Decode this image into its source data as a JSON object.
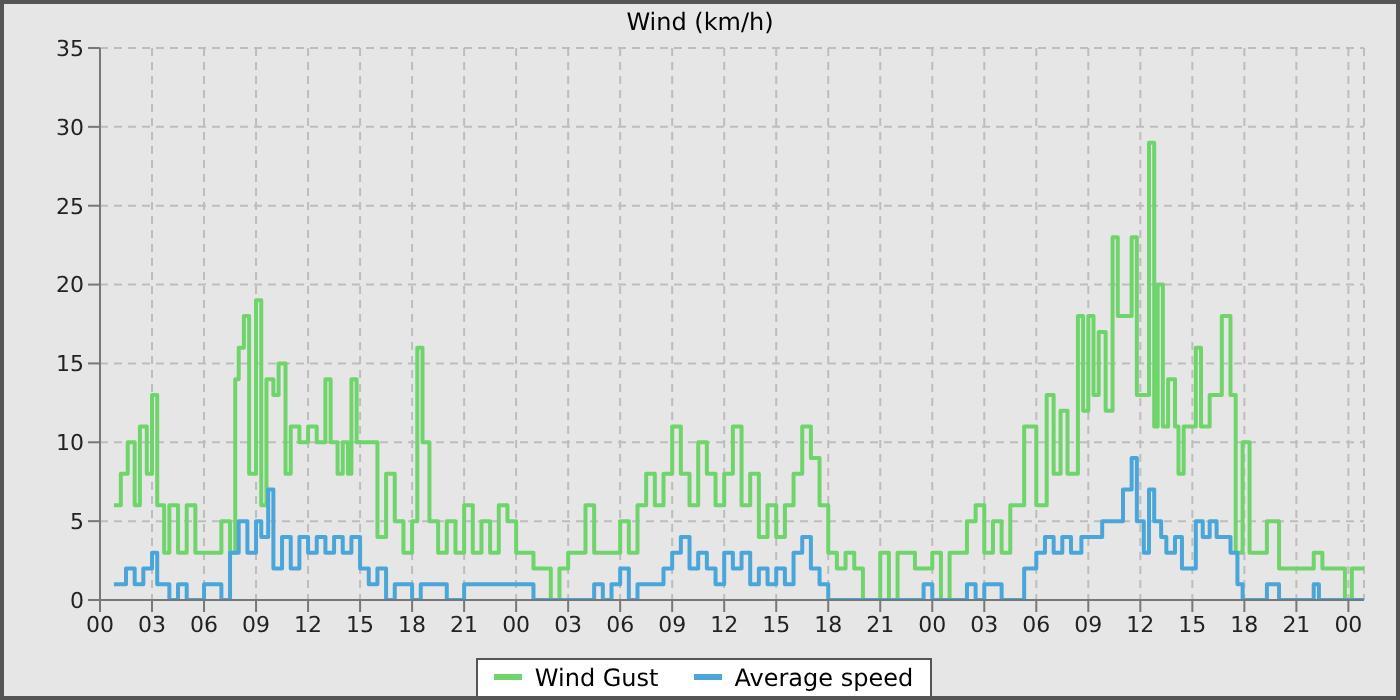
{
  "chart_data": {
    "type": "step",
    "title": "Wind (km/h)",
    "xlim": [
      0,
      72.9
    ],
    "xticks": [
      {
        "value": 0,
        "label": "00"
      },
      {
        "value": 3,
        "label": "03"
      },
      {
        "value": 6,
        "label": "06"
      },
      {
        "value": 9,
        "label": "09"
      },
      {
        "value": 12,
        "label": "12"
      },
      {
        "value": 15,
        "label": "15"
      },
      {
        "value": 18,
        "label": "18"
      },
      {
        "value": 21,
        "label": "21"
      },
      {
        "value": 24,
        "label": "00"
      },
      {
        "value": 27,
        "label": "03"
      },
      {
        "value": 30,
        "label": "06"
      },
      {
        "value": 33,
        "label": "09"
      },
      {
        "value": 36,
        "label": "12"
      },
      {
        "value": 39,
        "label": "15"
      },
      {
        "value": 42,
        "label": "18"
      },
      {
        "value": 45,
        "label": "21"
      },
      {
        "value": 48,
        "label": "00"
      },
      {
        "value": 51,
        "label": "03"
      },
      {
        "value": 54,
        "label": "06"
      },
      {
        "value": 57,
        "label": "09"
      },
      {
        "value": 60,
        "label": "12"
      },
      {
        "value": 63,
        "label": "15"
      },
      {
        "value": 66,
        "label": "18"
      },
      {
        "value": 69,
        "label": "21"
      },
      {
        "value": 72,
        "label": "00"
      }
    ],
    "ylim": [
      0,
      35
    ],
    "yticks": [
      0,
      5,
      10,
      15,
      20,
      25,
      30,
      35
    ],
    "grid": true,
    "legend": "bottom",
    "series": [
      {
        "name": "Wind Gust",
        "color": "#70d46c",
        "x": [
          0.8,
          1.2,
          1.6,
          2.0,
          2.3,
          2.7,
          3.0,
          3.3,
          3.7,
          4.0,
          4.5,
          5.0,
          5.5,
          6.0,
          7.0,
          7.5,
          7.8,
          8.0,
          8.3,
          8.6,
          9.0,
          9.3,
          9.6,
          10.0,
          10.3,
          10.7,
          11.0,
          11.5,
          12.0,
          12.5,
          13.0,
          13.3,
          13.7,
          14.0,
          14.3,
          14.5,
          14.8,
          15.3,
          16.0,
          16.5,
          17.0,
          17.5,
          18.0,
          18.3,
          18.6,
          19.0,
          19.5,
          20.0,
          20.5,
          21.0,
          21.5,
          22.0,
          22.5,
          23.0,
          23.5,
          24.0,
          25.0,
          26.0,
          26.5,
          27.0,
          28.0,
          28.5,
          29.0,
          30.0,
          30.5,
          31.0,
          31.5,
          32.0,
          32.5,
          33.0,
          33.5,
          34.0,
          34.5,
          35.0,
          35.5,
          36.0,
          36.5,
          37.0,
          37.5,
          38.0,
          38.5,
          39.0,
          39.5,
          40.0,
          40.5,
          41.0,
          41.5,
          42.0,
          42.5,
          43.0,
          43.5,
          44.0,
          45.0,
          45.5,
          46.0,
          47.0,
          48.0,
          48.5,
          49.0,
          50.0,
          50.5,
          51.0,
          51.5,
          52.0,
          52.5,
          53.3,
          54.0,
          54.6,
          55.0,
          55.4,
          55.8,
          56.4,
          56.7,
          57.0,
          57.3,
          57.6,
          58.0,
          58.4,
          58.7,
          59.5,
          59.8,
          60.5,
          60.8,
          61.0,
          61.3,
          61.6,
          62.0,
          62.2,
          62.5,
          63.2,
          63.5,
          64.0,
          64.7,
          65.2,
          65.5,
          65.9,
          66.3,
          67.3,
          68.0,
          70.0,
          70.5,
          71.8,
          72.2,
          72.9
        ],
        "values": [
          6,
          8,
          10,
          6,
          11,
          8,
          13,
          6,
          3,
          6,
          3,
          6,
          3,
          3,
          5,
          3,
          14,
          16,
          18,
          8,
          19,
          6,
          14,
          13,
          15,
          8,
          11,
          10,
          11,
          10,
          14,
          10,
          8,
          10,
          8,
          14,
          10,
          10,
          4,
          8,
          5,
          3,
          5,
          16,
          10,
          5,
          3,
          5,
          3,
          6,
          3,
          5,
          3,
          6,
          5,
          3,
          2,
          0,
          2,
          3,
          6,
          3,
          3,
          5,
          3,
          6,
          8,
          6,
          8,
          11,
          8,
          6,
          10,
          8,
          6,
          8,
          11,
          6,
          8,
          4,
          6,
          4,
          6,
          8,
          11,
          9,
          6,
          3,
          2,
          3,
          2,
          0,
          3,
          0,
          3,
          2,
          3,
          0,
          3,
          5,
          6,
          3,
          5,
          3,
          6,
          11,
          6,
          13,
          8,
          12,
          8,
          18,
          12,
          18,
          13,
          17,
          12,
          23,
          18,
          23,
          13,
          29,
          11,
          20,
          11,
          14,
          11,
          8,
          11,
          16,
          11,
          13,
          18,
          13,
          3,
          10,
          3,
          5,
          2,
          3,
          2,
          0,
          2,
          2
        ]
      },
      {
        "name": "Average speed",
        "color": "#4aa6d8",
        "x": [
          0.8,
          1.5,
          2.0,
          2.5,
          3.0,
          3.3,
          4.0,
          4.5,
          5.0,
          6.0,
          7.0,
          7.5,
          8.0,
          8.5,
          9.0,
          9.3,
          9.7,
          10.0,
          10.5,
          11.0,
          11.5,
          12.0,
          12.5,
          13.0,
          13.5,
          14.0,
          14.5,
          15.0,
          15.5,
          16.0,
          16.5,
          17.0,
          18.0,
          18.5,
          19.5,
          20.0,
          21.0,
          22.0,
          23.0,
          24.0,
          25.0,
          28.0,
          28.5,
          29.0,
          29.5,
          30.0,
          30.5,
          31.0,
          32.0,
          32.5,
          33.0,
          33.5,
          34.0,
          34.5,
          35.0,
          35.5,
          36.0,
          36.5,
          37.0,
          37.5,
          38.0,
          38.5,
          39.0,
          39.5,
          40.0,
          40.5,
          41.0,
          41.5,
          42.0,
          47.5,
          48.0,
          50.0,
          50.5,
          51.0,
          52.0,
          53.3,
          54.0,
          54.5,
          55.0,
          55.5,
          56.0,
          56.6,
          57.8,
          59.0,
          59.5,
          59.8,
          60.2,
          60.5,
          60.8,
          61.2,
          61.5,
          62.0,
          62.4,
          63.2,
          63.6,
          64.0,
          64.4,
          65.2,
          65.6,
          65.9,
          67.3,
          68.0,
          70.0,
          70.3,
          72.9
        ],
        "values": [
          1,
          2,
          1,
          2,
          3,
          1,
          0,
          1,
          0,
          1,
          0,
          3,
          5,
          3,
          5,
          4,
          7,
          2,
          4,
          2,
          4,
          3,
          4,
          3,
          4,
          3,
          4,
          2,
          1,
          2,
          0,
          1,
          0,
          1,
          1,
          0,
          1,
          1,
          1,
          1,
          0,
          0,
          1,
          0,
          1,
          2,
          0,
          1,
          1,
          2,
          3,
          4,
          2,
          3,
          2,
          1,
          3,
          2,
          3,
          1,
          2,
          1,
          2,
          1,
          3,
          4,
          2,
          1,
          0,
          1,
          0,
          1,
          0,
          1,
          0,
          2,
          3,
          4,
          3,
          4,
          3,
          4,
          5,
          7,
          9,
          5,
          3,
          7,
          5,
          4,
          3,
          4,
          2,
          5,
          4,
          5,
          4,
          3,
          1,
          0,
          1,
          0,
          1,
          0,
          0
        ]
      }
    ]
  }
}
